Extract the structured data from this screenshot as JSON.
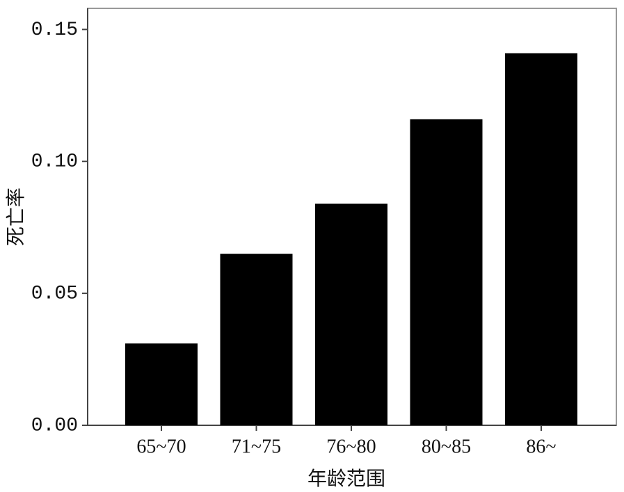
{
  "chart_data": {
    "type": "bar",
    "x_label": "年龄范围",
    "y_label": "死亡率",
    "categories": [
      "65~70",
      "71~75",
      "76~80",
      "80~85",
      "86~"
    ],
    "values": [
      0.031,
      0.065,
      0.084,
      0.116,
      0.141
    ],
    "color": "#000000",
    "ylim": [
      0,
      0.158
    ],
    "yticks": [
      {
        "value": 0,
        "label": "0.00"
      },
      {
        "value": 0.05,
        "label": "0.05"
      },
      {
        "value": 0.1,
        "label": "0.10"
      },
      {
        "value": 0.15,
        "label": "0.15"
      }
    ]
  }
}
